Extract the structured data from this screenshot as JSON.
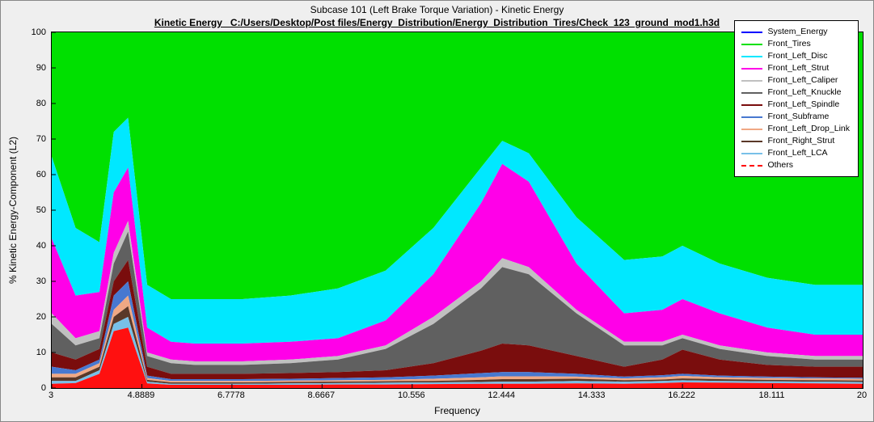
{
  "chart": {
    "type": "stacked-area",
    "title_line1": "Subcase 101 (Left Brake Torque Variation) - Kinetic Energy",
    "title_line2": "Kinetic Energy   C:/Users/Desktop/Post files/Energy_Distribution/Energy_Distribution_Tires/Check_123_ground_mod1.h3d",
    "title1_fontsize": 12,
    "title2_fontsize": 12,
    "title2_bold": true,
    "title2_underline": true,
    "xlabel": "Frequency",
    "ylabel": "% Kinetic Energy-Component (L2)",
    "label_fontsize": 12,
    "tick_fontsize": 11,
    "xlim": [
      3,
      20
    ],
    "ylim": [
      0,
      100
    ],
    "xticks": [
      3,
      4.8889,
      6.7778,
      8.6667,
      10.556,
      12.444,
      14.333,
      16.222,
      18.111,
      20
    ],
    "xtick_labels": [
      "3",
      "4.8889",
      "6.7778",
      "8.6667",
      "10.556",
      "12.444",
      "14.333",
      "16.222",
      "18.111",
      "20"
    ],
    "yticks": [
      0,
      10,
      20,
      30,
      40,
      50,
      60,
      70,
      80,
      90,
      100
    ],
    "background_color": "#ffffff",
    "frame_background": "#efefef",
    "border_color": "#000000",
    "legend": {
      "position": "top-right",
      "fontsize": 10.5,
      "border_color": "#000000",
      "background": "#ffffff",
      "items": [
        {
          "label": "System_Energy",
          "color": "#0000ff",
          "dash": false
        },
        {
          "label": "Front_Tires",
          "color": "#00e000",
          "dash": false
        },
        {
          "label": "Front_Left_Disc",
          "color": "#00e8ff",
          "dash": false
        },
        {
          "label": "Front_Left_Strut",
          "color": "#ff00e8",
          "dash": false
        },
        {
          "label": "Front_Left_Caliper",
          "color": "#c0c0c0",
          "dash": false
        },
        {
          "label": "Front_Left_Knuckle",
          "color": "#606060",
          "dash": false
        },
        {
          "label": "Front_Left_Spindle",
          "color": "#7a0d0d",
          "dash": false
        },
        {
          "label": "Front_Subframe",
          "color": "#4878d0",
          "dash": false
        },
        {
          "label": "Front_Left_Drop_Link",
          "color": "#f0a884",
          "dash": false
        },
        {
          "label": "Front_Right_Strut",
          "color": "#5a3828",
          "dash": false
        },
        {
          "label": "Front_Left_LCA",
          "color": "#78c0e8",
          "dash": false
        },
        {
          "label": "Others",
          "color": "#ff0000",
          "dash": true
        }
      ]
    },
    "x_values": [
      3,
      3.5,
      4,
      4.3,
      4.6,
      5,
      5.5,
      6,
      7,
      8,
      9,
      10,
      11,
      12,
      12.444,
      13,
      14,
      15,
      15.8,
      16.222,
      17,
      18,
      19,
      20
    ],
    "areas_top": {
      "System_Energy": [
        100,
        100,
        100,
        100,
        100,
        100,
        100,
        100,
        100,
        100,
        100,
        100,
        100,
        100,
        100,
        100,
        100,
        100,
        100,
        100,
        100,
        100,
        100,
        100
      ],
      "Front_Tires": [
        100,
        100,
        100,
        100,
        100,
        100,
        100,
        100,
        100,
        100,
        100,
        100,
        100,
        100,
        100,
        100,
        100,
        100,
        100,
        100,
        100,
        100,
        100,
        100
      ],
      "Front_Left_Disc": [
        65,
        45,
        41,
        72,
        76,
        29,
        25,
        25,
        25,
        26,
        28,
        33,
        45,
        62,
        69.5,
        66,
        48,
        36,
        37,
        40,
        35,
        31,
        29,
        29
      ],
      "Front_Left_Strut": [
        42,
        26,
        27,
        55,
        62,
        17,
        13,
        12.5,
        12.5,
        13,
        14,
        19,
        32,
        52,
        63,
        58,
        35,
        21,
        22,
        25,
        21,
        17,
        15,
        15
      ],
      "Front_Left_Caliper": [
        21,
        14,
        16,
        38,
        47,
        10,
        8,
        7.5,
        7.5,
        8,
        9,
        12,
        20,
        30,
        36.5,
        34,
        22,
        13,
        13,
        15,
        12,
        10,
        9,
        9
      ],
      "Front_Left_Knuckle": [
        18,
        12,
        14,
        35,
        44,
        9,
        7,
        6.5,
        6.5,
        7,
        8,
        11,
        18,
        28,
        34,
        32,
        21,
        12,
        12,
        14,
        11,
        9,
        8,
        8
      ],
      "Front_Left_Spindle": [
        10,
        8,
        11,
        30,
        36,
        6,
        4,
        4,
        4,
        4.2,
        4.5,
        5,
        7,
        10.5,
        12.5,
        12,
        9,
        6,
        8,
        10.8,
        8,
        6.5,
        6,
        6
      ],
      "Front_Subframe": [
        6,
        5,
        8,
        26,
        30,
        3.5,
        2.5,
        2.5,
        2.5,
        2.6,
        2.8,
        3,
        3.5,
        4.2,
        4.5,
        4.5,
        4,
        3.2,
        3.6,
        4,
        3.5,
        3.2,
        3,
        2.9
      ],
      "Front_Left_Drop_Link": [
        4,
        4,
        7,
        22,
        26,
        2.8,
        2.0,
        2.0,
        2.0,
        2.1,
        2.2,
        2.3,
        2.6,
        3.0,
        3.3,
        3.3,
        3.2,
        2.7,
        3.0,
        3.4,
        3.0,
        2.8,
        2.7,
        2.6
      ],
      "Front_Right_Strut": [
        3,
        3,
        6,
        20,
        23,
        2.3,
        1.6,
        1.6,
        1.6,
        1.7,
        1.8,
        1.9,
        2.0,
        2.3,
        2.5,
        2.5,
        2.6,
        2.2,
        2.4,
        2.7,
        2.5,
        2.3,
        2.2,
        2.1
      ],
      "Front_Left_LCA": [
        2,
        2,
        5,
        18,
        20,
        1.8,
        1.2,
        1.2,
        1.2,
        1.3,
        1.4,
        1.5,
        1.6,
        1.7,
        1.8,
        1.8,
        2.0,
        1.8,
        2.0,
        2.2,
        2.0,
        1.9,
        1.8,
        1.7
      ],
      "Others": [
        1.2,
        1.4,
        4,
        16,
        17,
        1.3,
        0.9,
        0.9,
        0.9,
        0.9,
        1.0,
        1.0,
        1.1,
        1.2,
        1.2,
        1.2,
        1.3,
        1.2,
        1.4,
        1.6,
        1.5,
        1.4,
        1.3,
        1.2
      ]
    },
    "fill_colors": {
      "Front_Tires": "#00e000",
      "Front_Left_Disc": "#00e8ff",
      "Front_Left_Strut": "#ff00e8",
      "Front_Left_Caliper": "#c0c0c0",
      "Front_Left_Knuckle": "#606060",
      "Front_Left_Spindle": "#7a0d0d",
      "Front_Subframe": "#4878d0",
      "Front_Left_Drop_Link": "#f0a884",
      "Front_Right_Strut": "#5a3828",
      "Front_Left_LCA": "#78c0e8",
      "Others": "#ff1010"
    },
    "stack_order_top_to_bottom": [
      "Front_Tires",
      "Front_Left_Disc",
      "Front_Left_Strut",
      "Front_Left_Caliper",
      "Front_Left_Knuckle",
      "Front_Left_Spindle",
      "Front_Subframe",
      "Front_Left_Drop_Link",
      "Front_Right_Strut",
      "Front_Left_LCA",
      "Others"
    ]
  }
}
